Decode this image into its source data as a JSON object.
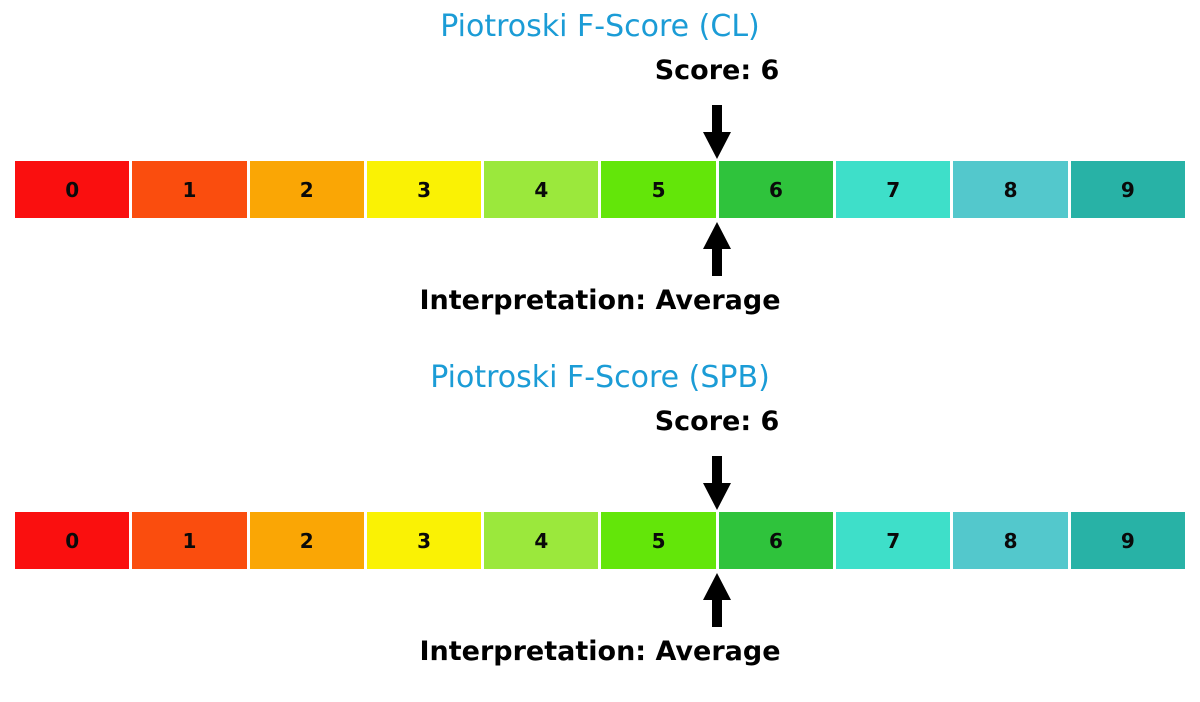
{
  "styles": {
    "title_color": "#1B9CD6",
    "text_color": "#000000",
    "arrow_color": "#000000",
    "background": "#FFFFFF"
  },
  "chart_data": [
    {
      "type": "bar",
      "title": "Piotroski F-Score (CL)",
      "score": 6,
      "score_label": "Score: 6",
      "interpretation": "Average",
      "interpretation_label": "Interpretation: Average",
      "categories": [
        "0",
        "1",
        "2",
        "3",
        "4",
        "5",
        "6",
        "7",
        "8",
        "9"
      ],
      "values": [
        1,
        1,
        1,
        1,
        1,
        1,
        1,
        1,
        1,
        1
      ],
      "colors": [
        "#FA0F0F",
        "#FA4D0E",
        "#FAA605",
        "#FAF204",
        "#9BE83C",
        "#63E609",
        "#2FC33C",
        "#3EDFC9",
        "#53C8CC",
        "#28B2A6"
      ],
      "xlim": [
        0,
        10
      ],
      "marker_x": 6,
      "marker_style": "black arrows above and below scale at score position",
      "grid": false,
      "legend_position": "none"
    },
    {
      "type": "bar",
      "title": "Piotroski F-Score (SPB)",
      "score": 6,
      "score_label": "Score: 6",
      "interpretation": "Average",
      "interpretation_label": "Interpretation: Average",
      "categories": [
        "0",
        "1",
        "2",
        "3",
        "4",
        "5",
        "6",
        "7",
        "8",
        "9"
      ],
      "values": [
        1,
        1,
        1,
        1,
        1,
        1,
        1,
        1,
        1,
        1
      ],
      "colors": [
        "#FA0F0F",
        "#FA4D0E",
        "#FAA605",
        "#FAF204",
        "#9BE83C",
        "#63E609",
        "#2FC3C3C",
        "#3EDFC9",
        "#53C8CC",
        "#28B2A6"
      ],
      "xlim": [
        0,
        10
      ],
      "marker_x": 6,
      "marker_style": "black arrows above and below scale at score position",
      "grid": false,
      "legend_position": "none"
    }
  ]
}
